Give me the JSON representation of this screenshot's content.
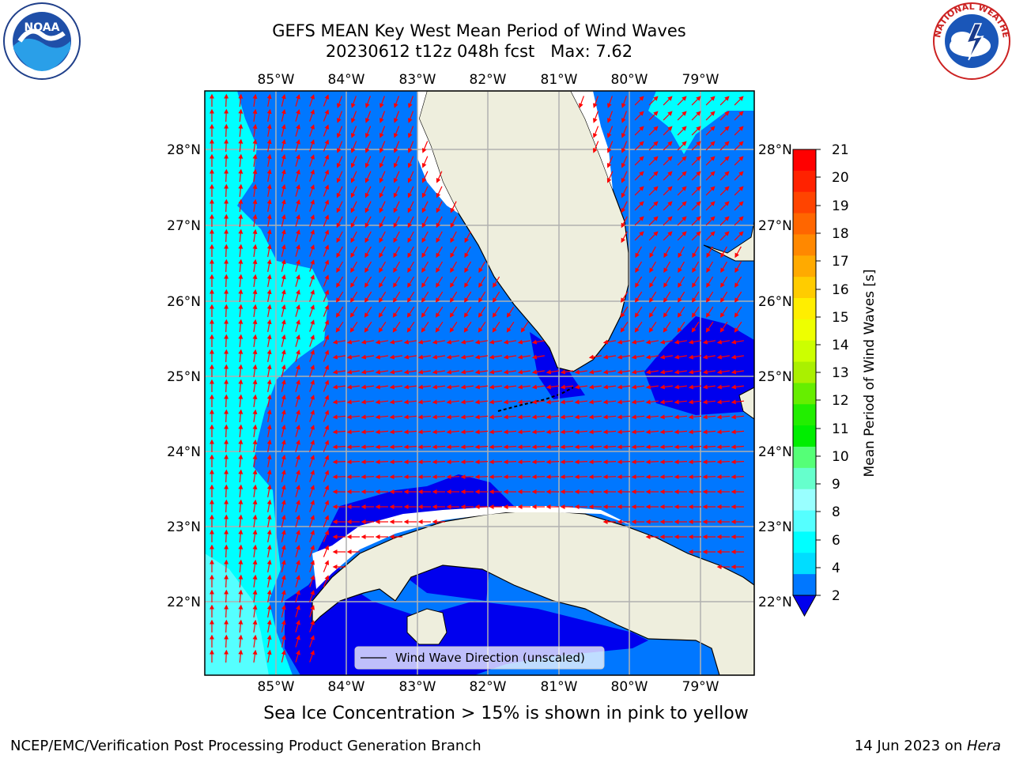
{
  "title": {
    "line1": "GEFS MEAN Key West Mean Period of Wind Waves",
    "line2": "20230612 t12z 048h fcst   Max: 7.62"
  },
  "axes": {
    "lon_ticks": [
      "85°W",
      "84°W",
      "83°W",
      "82°W",
      "81°W",
      "80°W",
      "79°W"
    ],
    "lat_ticks": [
      "28°N",
      "27°N",
      "26°N",
      "25°N",
      "24°N",
      "23°N",
      "22°N"
    ]
  },
  "legend": {
    "label": "Wind Wave Direction (unscaled)"
  },
  "colorbar": {
    "label": "Mean Period of Wind Waves [s]",
    "ticks": [
      "21",
      "20",
      "19",
      "18",
      "17",
      "16",
      "15",
      "14",
      "13",
      "12",
      "11",
      "10",
      "9",
      "8",
      "6",
      "4",
      "2"
    ],
    "colors": [
      "#ff0000",
      "#ff2200",
      "#ff4400",
      "#ff6600",
      "#ff8800",
      "#ffaa00",
      "#ffcc00",
      "#ffee00",
      "#eeff00",
      "#ccff00",
      "#aaf000",
      "#66ee00",
      "#22ee00",
      "#00ee00",
      "#55ff77",
      "#66ffcc",
      "#99ffff",
      "#55ffff",
      "#00ffff",
      "#00ddff",
      "#0077ff"
    ],
    "extend_color": "#0000ee"
  },
  "logos": {
    "noaa": "NOAA",
    "nws": "NATIONAL WEATHER SERVICE"
  },
  "notes": {
    "sea_ice": "Sea Ice Concentration > 15% is shown in pink to yellow",
    "credit": "NCEP/EMC/Verification Post Processing Product Generation Branch",
    "date": "14 Jun 2023 on ",
    "machine": "Hera"
  }
}
